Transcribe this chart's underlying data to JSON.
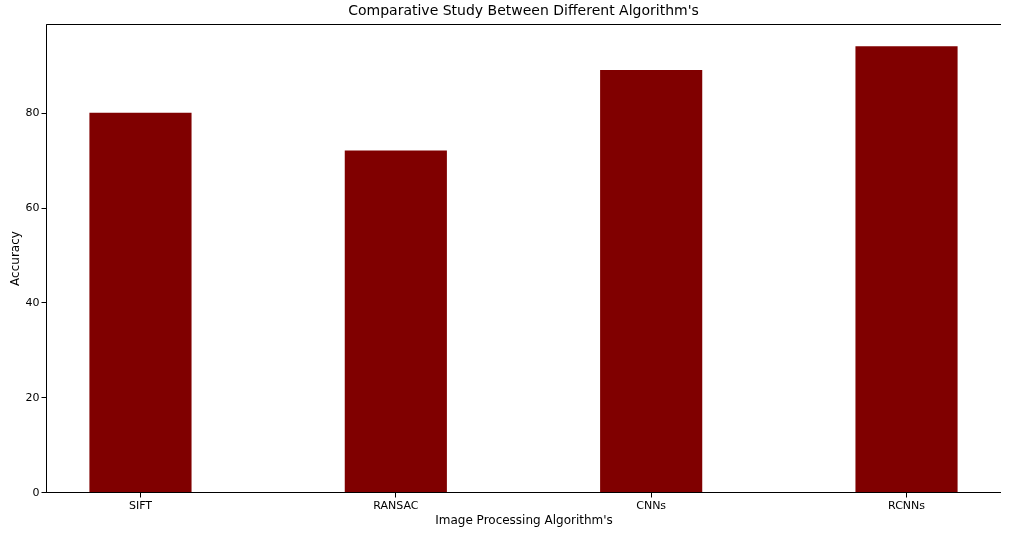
{
  "chart_data": {
    "type": "bar",
    "title": "Comparative Study Between Different Algorithm's",
    "xlabel": "Image Processing Algorithm's",
    "ylabel": "Accuracy",
    "categories": [
      "SIFT",
      "RANSAC",
      "CNNs",
      "RCNNs"
    ],
    "values": [
      80,
      72,
      89,
      94
    ],
    "color": "#800000",
    "ylim": [
      0,
      98.7
    ],
    "yticks": [
      0,
      20,
      40,
      60,
      80
    ],
    "grid": false
  }
}
